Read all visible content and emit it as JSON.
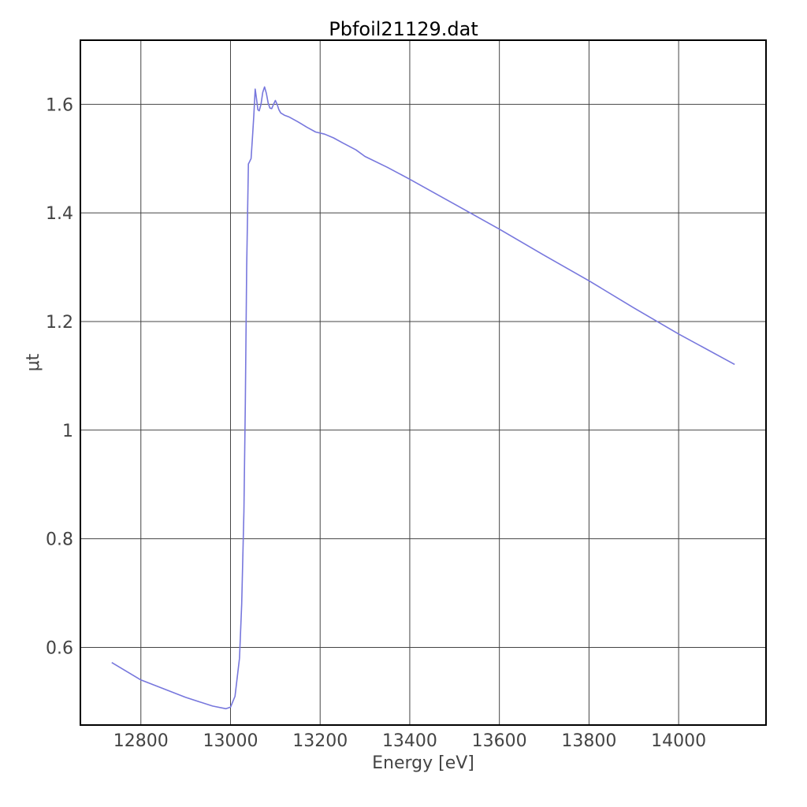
{
  "chart_data": {
    "type": "line",
    "title": "Pbfoil21129.dat",
    "xlabel": "Energy [eV]",
    "ylabel": "μt",
    "xlim": [
      12665,
      14195
    ],
    "ylim": [
      0.457,
      1.718
    ],
    "grid": true,
    "x_ticks": [
      12800,
      13000,
      13200,
      13400,
      13600,
      13800,
      14000
    ],
    "x_tick_labels": [
      "12800",
      "13000",
      "13200",
      "13400",
      "13600",
      "13800",
      "14000"
    ],
    "y_ticks": [
      0.6,
      0.8,
      1.0,
      1.2,
      1.4,
      1.6
    ],
    "y_tick_labels": [
      "0.6",
      "0.8",
      "1",
      "1.2",
      "1.4",
      "1.6"
    ],
    "series": [
      {
        "color": "#7777dd",
        "x": [
          12735,
          12800,
          12900,
          12960,
          12990,
          13000,
          13010,
          13020,
          13025,
          13030,
          13033,
          13036,
          13040,
          13043,
          13046,
          13049,
          13052,
          13055,
          13058,
          13061,
          13064,
          13068,
          13072,
          13076,
          13080,
          13084,
          13088,
          13092,
          13096,
          13100,
          13104,
          13108,
          13112,
          13116,
          13120,
          13130,
          13150,
          13170,
          13190,
          13210,
          13230,
          13250,
          13280,
          13300,
          13350,
          13400,
          13500,
          13600,
          13700,
          13800,
          13900,
          14000,
          14125
        ],
        "y": [
          0.572,
          0.54,
          0.508,
          0.492,
          0.487,
          0.49,
          0.51,
          0.58,
          0.68,
          0.85,
          1.05,
          1.3,
          1.49,
          1.495,
          1.5,
          1.54,
          1.58,
          1.628,
          1.61,
          1.59,
          1.588,
          1.6,
          1.622,
          1.632,
          1.62,
          1.602,
          1.593,
          1.592,
          1.6,
          1.607,
          1.6,
          1.59,
          1.584,
          1.582,
          1.58,
          1.577,
          1.568,
          1.558,
          1.549,
          1.545,
          1.538,
          1.529,
          1.516,
          1.504,
          1.484,
          1.462,
          1.416,
          1.37,
          1.322,
          1.275,
          1.225,
          1.177,
          1.121
        ]
      }
    ]
  }
}
